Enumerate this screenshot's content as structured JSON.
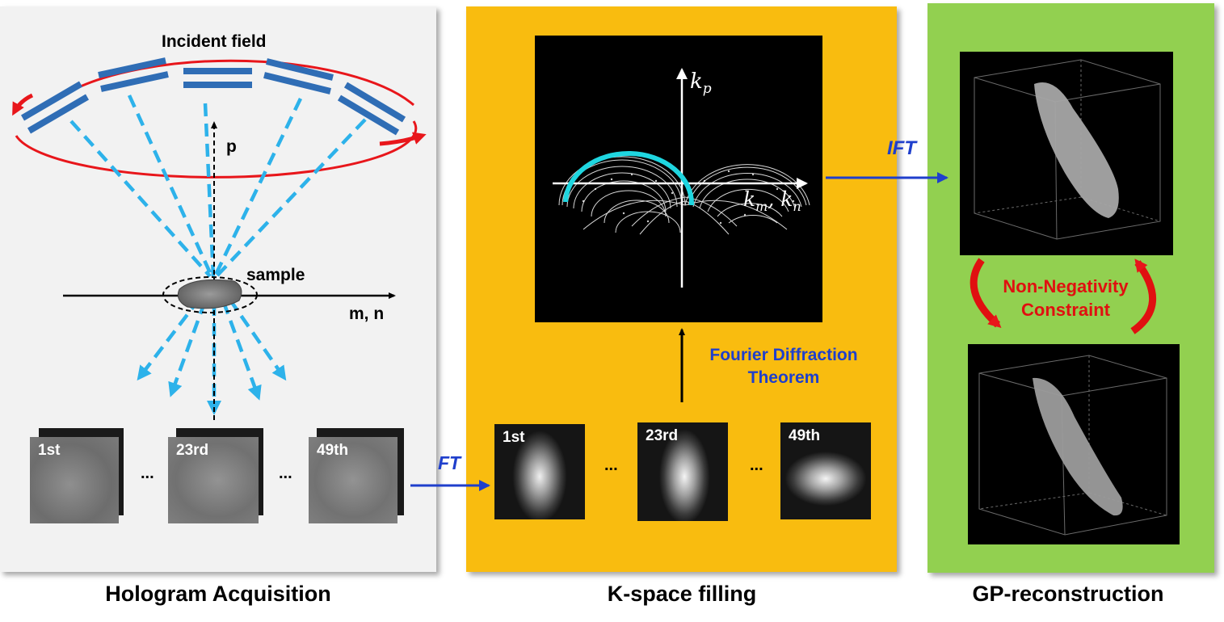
{
  "panels": {
    "hologram": {
      "caption": "Hologram Acquisition"
    },
    "kspace": {
      "caption": "K-space filling"
    },
    "gp": {
      "caption": "GP-reconstruction"
    }
  },
  "hologram": {
    "incident_label": "Incident field",
    "p_axis": "p",
    "mn_axis": "m, n",
    "sample_label": "sample",
    "frames": [
      "1st",
      "23rd",
      "49th"
    ],
    "ellipsis": "..."
  },
  "arrows": {
    "ft": "FT",
    "ift": "IFT"
  },
  "kspace": {
    "kp": "k",
    "kp_sub": "p",
    "kmn_k1": "k",
    "kmn_sub1": "m",
    "kmn_sep": ", ",
    "kmn_k2": "k",
    "kmn_sub2": "n",
    "theorem_line1": "Fourier Diffraction",
    "theorem_line2": "Theorem",
    "frames": [
      "1st",
      "23rd",
      "49th"
    ],
    "ellipsis": "..."
  },
  "gp": {
    "constraint_line1": "Non-Negativity",
    "constraint_line2": "Constraint"
  },
  "colors": {
    "beam": "#2f6db5",
    "ray": "#2db2ea",
    "orbit": "#e8161b",
    "arc": "#1fd6e0",
    "kspace_panel": "#f9bc0f",
    "gp_panel": "#92d050",
    "label_blue": "#1f3fcc"
  }
}
